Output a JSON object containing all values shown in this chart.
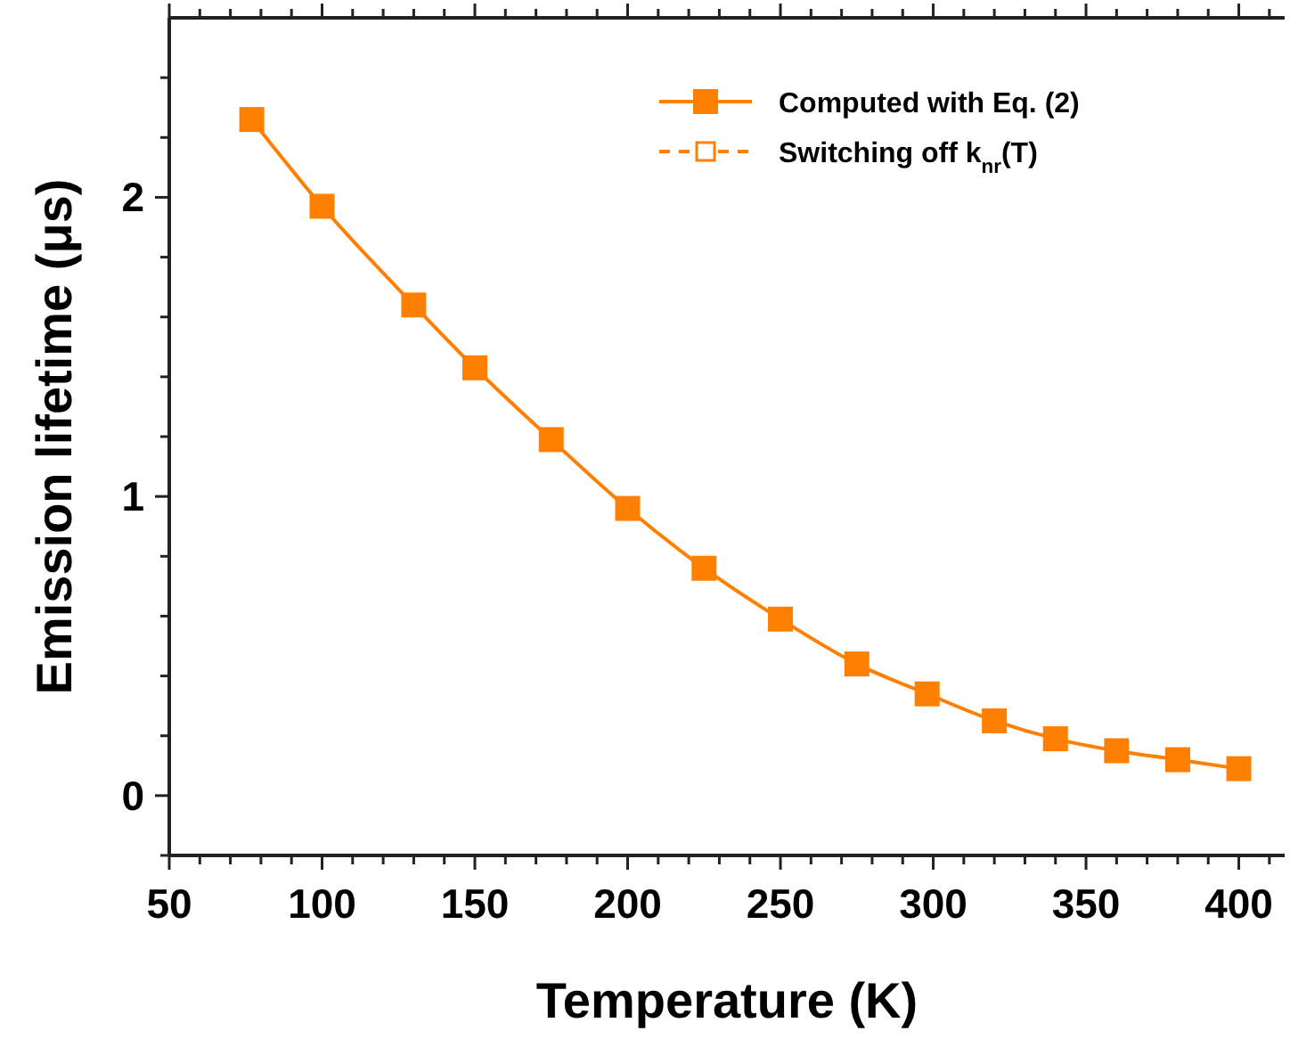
{
  "chart_data": {
    "type": "line",
    "xlabel": "Temperature (K)",
    "ylabel": "Emission lifetime (μs)",
    "xlim": [
      50,
      415
    ],
    "ylim": [
      -0.2,
      2.6
    ],
    "xticks": [
      50,
      {
        "value": 60,
        "label": null
      },
      {
        "value": 70,
        "label": null
      },
      {
        "value": 80,
        "label": null
      },
      {
        "value": 90,
        "label": null
      },
      100,
      {
        "value": 110,
        "label": null
      },
      {
        "value": 120,
        "label": null
      },
      {
        "value": 130,
        "label": null
      },
      {
        "value": 140,
        "label": null
      },
      150,
      {
        "value": 160,
        "label": null
      },
      {
        "value": 170,
        "label": null
      },
      {
        "value": 180,
        "label": null
      },
      {
        "value": 190,
        "label": null
      },
      200,
      {
        "value": 210,
        "label": null
      },
      {
        "value": 220,
        "label": null
      },
      {
        "value": 230,
        "label": null
      },
      {
        "value": 240,
        "label": null
      },
      250,
      {
        "value": 260,
        "label": null
      },
      {
        "value": 270,
        "label": null
      },
      {
        "value": 280,
        "label": null
      },
      {
        "value": 290,
        "label": null
      },
      300,
      {
        "value": 310,
        "label": null
      },
      {
        "value": 320,
        "label": null
      },
      {
        "value": 330,
        "label": null
      },
      {
        "value": 340,
        "label": null
      },
      350,
      {
        "value": 360,
        "label": null
      },
      {
        "value": 370,
        "label": null
      },
      {
        "value": 380,
        "label": null
      },
      {
        "value": 390,
        "label": null
      },
      400,
      {
        "value": 410,
        "label": null
      }
    ],
    "yticks": [
      {
        "value": -0.2,
        "label": null
      },
      0,
      {
        "value": 0.2,
        "label": null
      },
      {
        "value": 0.4,
        "label": null
      },
      {
        "value": 0.6,
        "label": null
      },
      {
        "value": 0.8,
        "label": null
      },
      1,
      {
        "value": 1.2,
        "label": null
      },
      {
        "value": 1.4,
        "label": null
      },
      {
        "value": 1.6,
        "label": null
      },
      {
        "value": 1.8,
        "label": null
      },
      2,
      {
        "value": 2.2,
        "label": null
      },
      {
        "value": 2.4,
        "label": null
      }
    ],
    "x": [
      77,
      100,
      130,
      150,
      175,
      200,
      225,
      250,
      275,
      298,
      320,
      340,
      360,
      380,
      400
    ],
    "legend": "top right",
    "series": [
      {
        "name": "Computed with Eq. (2)",
        "color": "#ff8000",
        "marker": "square",
        "line_style": "solid",
        "values": [
          2.26,
          1.97,
          1.64,
          1.43,
          1.19,
          0.96,
          0.76,
          0.59,
          0.44,
          0.34,
          0.25,
          0.19,
          0.15,
          0.12,
          0.09
        ]
      },
      {
        "name": "Switching off k$_{nr}$(T)",
        "color": "#ff8000",
        "marker": "square-open",
        "line_style": "dashed",
        "values": [
          null,
          null,
          null,
          null,
          null,
          null,
          null,
          null,
          null,
          null,
          null,
          null,
          null,
          null,
          null
        ]
      }
    ]
  }
}
